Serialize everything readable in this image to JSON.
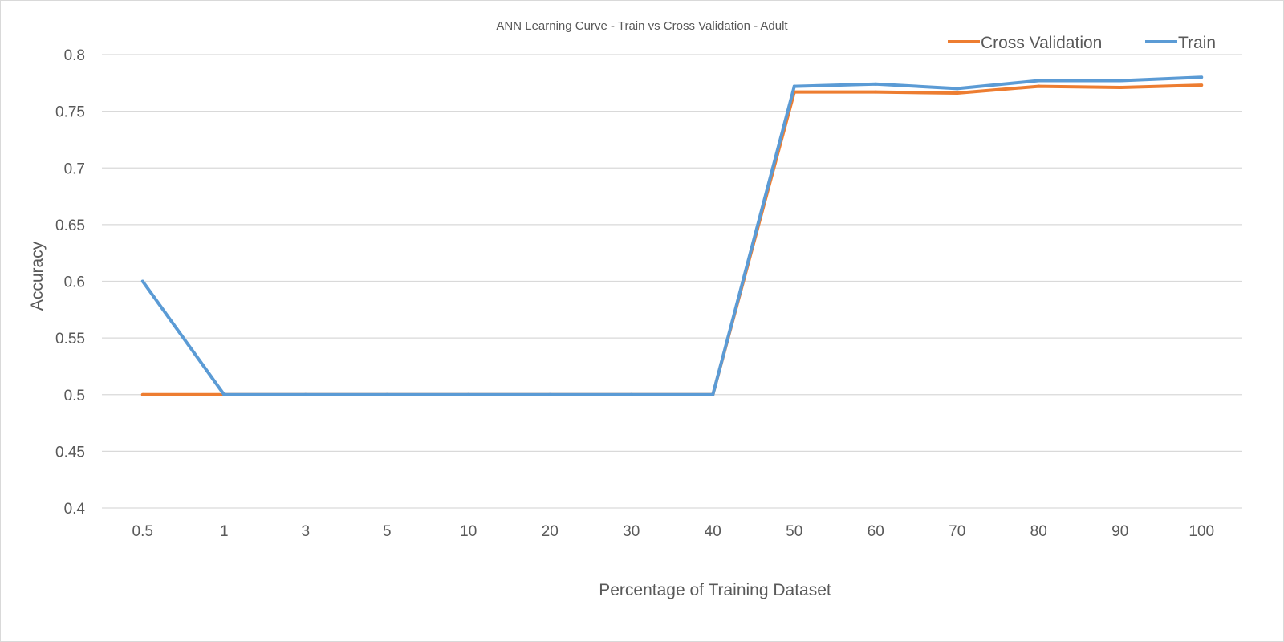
{
  "colors": {
    "background": "#ffffff",
    "grid": "#d9d9d9",
    "text": "#595959",
    "cross_validation": "#ed7d31",
    "train": "#5b9bd5"
  },
  "chart_data": {
    "type": "line",
    "title": "ANN Learning Curve - Train vs Cross Validation - Adult",
    "xlabel": "Percentage of Training Dataset",
    "ylabel": "Accuracy",
    "categories": [
      "0.5",
      "1",
      "3",
      "5",
      "10",
      "20",
      "30",
      "40",
      "50",
      "60",
      "70",
      "80",
      "90",
      "100"
    ],
    "ylim": [
      0.4,
      0.8
    ],
    "yticks": [
      0.4,
      0.45,
      0.5,
      0.55,
      0.6,
      0.65,
      0.7,
      0.75,
      0.8
    ],
    "ytick_labels": [
      "0.4",
      "0.45",
      "0.5",
      "0.55",
      "0.6",
      "0.65",
      "0.7",
      "0.75",
      "0.8"
    ],
    "grid": "horizontal",
    "legend_position": "top-right",
    "series": [
      {
        "name": "Cross Validation",
        "color": "#ed7d31",
        "values": [
          0.5,
          0.5,
          0.5,
          0.5,
          0.5,
          0.5,
          0.5,
          0.5,
          0.767,
          0.767,
          0.766,
          0.772,
          0.771,
          0.773
        ]
      },
      {
        "name": "Train",
        "color": "#5b9bd5",
        "values": [
          0.6,
          0.5,
          0.5,
          0.5,
          0.5,
          0.5,
          0.5,
          0.5,
          0.772,
          0.774,
          0.77,
          0.777,
          0.777,
          0.78
        ]
      }
    ]
  }
}
